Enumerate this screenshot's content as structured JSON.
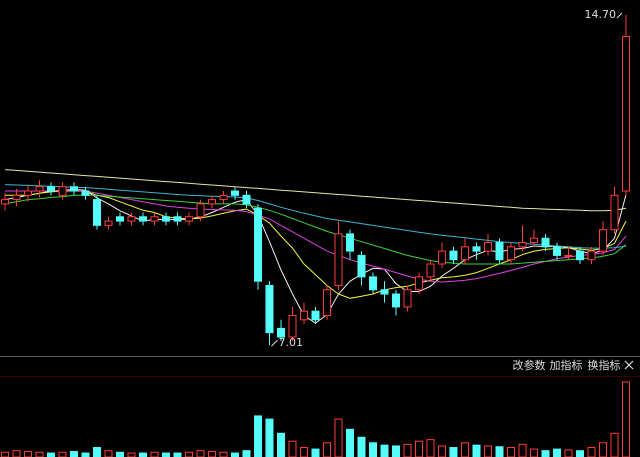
{
  "chart_data": {
    "type": "candlestick",
    "ylim": [
      6.78,
      15.05
    ],
    "colors": {
      "up": "#ff3c3c",
      "down": "#54fcfc"
    },
    "open": [
      10.3,
      10.4,
      10.5,
      10.6,
      10.7,
      10.5,
      10.7,
      10.6,
      10.4,
      9.8,
      10.0,
      9.9,
      10.0,
      9.9,
      10.0,
      10.0,
      9.9,
      10.0,
      10.3,
      10.4,
      10.6,
      10.5,
      10.2,
      8.4,
      7.4,
      7.2,
      7.6,
      7.8,
      7.7,
      8.4,
      9.6,
      9.1,
      8.6,
      8.3,
      8.2,
      7.9,
      8.3,
      8.6,
      8.9,
      9.2,
      9.0,
      9.3,
      9.2,
      9.4,
      9.0,
      9.3,
      9.4,
      9.5,
      9.3,
      9.1,
      9.2,
      9.0,
      9.2,
      9.7,
      10.6
    ],
    "high": [
      10.55,
      10.65,
      10.75,
      10.85,
      10.8,
      10.8,
      10.8,
      10.7,
      10.5,
      10.0,
      10.1,
      10.1,
      10.1,
      10.1,
      10.1,
      10.1,
      10.1,
      10.4,
      10.5,
      10.6,
      10.7,
      10.6,
      10.3,
      8.5,
      7.6,
      7.9,
      8.0,
      7.9,
      8.4,
      9.9,
      9.7,
      9.2,
      8.7,
      8.5,
      8.3,
      8.4,
      8.7,
      9.0,
      9.4,
      9.3,
      9.5,
      9.4,
      9.6,
      9.5,
      9.4,
      9.8,
      9.7,
      9.6,
      9.4,
      9.3,
      9.3,
      9.3,
      9.9,
      10.7,
      14.7
    ],
    "low": [
      10.15,
      10.25,
      10.35,
      10.45,
      10.5,
      10.4,
      10.5,
      10.4,
      9.7,
      9.7,
      9.8,
      9.8,
      9.8,
      9.8,
      9.8,
      9.8,
      9.8,
      9.9,
      10.2,
      10.3,
      10.4,
      10.2,
      8.3,
      7.01,
      7.1,
      7.1,
      7.5,
      7.5,
      7.6,
      8.3,
      9.0,
      8.4,
      8.2,
      8.0,
      7.7,
      7.8,
      8.2,
      8.5,
      8.8,
      8.9,
      8.9,
      9.0,
      9.1,
      8.9,
      8.9,
      9.2,
      9.3,
      9.2,
      9.0,
      9.0,
      8.9,
      8.9,
      9.1,
      9.6,
      10.5
    ],
    "close": [
      10.4,
      10.5,
      10.6,
      10.7,
      10.6,
      10.7,
      10.6,
      10.5,
      9.8,
      9.9,
      9.9,
      10.0,
      9.9,
      10.0,
      9.9,
      9.9,
      10.0,
      10.3,
      10.4,
      10.5,
      10.5,
      10.3,
      8.5,
      7.3,
      7.2,
      7.7,
      7.8,
      7.6,
      8.3,
      9.6,
      9.2,
      8.6,
      8.3,
      8.2,
      7.9,
      8.3,
      8.6,
      8.9,
      9.2,
      9.0,
      9.3,
      9.2,
      9.4,
      9.0,
      9.3,
      9.4,
      9.5,
      9.3,
      9.1,
      9.1,
      9.0,
      9.2,
      9.7,
      10.5,
      14.2
    ],
    "lines": [
      {
        "color": "#f0f0f0",
        "values": [
          10.4,
          10.45,
          10.5,
          10.55,
          10.6,
          10.62,
          10.64,
          10.62,
          10.44,
          10.3,
          10.14,
          10.02,
          9.9,
          9.94,
          9.94,
          9.94,
          9.94,
          10.0,
          10.1,
          10.22,
          10.34,
          10.4,
          10.04,
          9.42,
          8.76,
          8.2,
          7.7,
          7.52,
          7.72,
          8.2,
          8.5,
          8.66,
          8.8,
          8.78,
          8.44,
          8.26,
          8.26,
          8.38,
          8.62,
          8.8,
          9.0,
          9.12,
          9.22,
          9.18,
          9.24,
          9.26,
          9.32,
          9.3,
          9.32,
          9.28,
          9.2,
          9.14,
          9.22,
          9.5,
          10.52
        ]
      },
      {
        "color": "#f5f53c",
        "values": [
          10.5,
          10.5,
          10.5,
          10.55,
          10.58,
          10.6,
          10.6,
          10.6,
          10.5,
          10.45,
          10.35,
          10.25,
          10.15,
          10.1,
          10.0,
          9.97,
          9.95,
          9.97,
          10.02,
          10.08,
          10.14,
          10.18,
          10.04,
          9.85,
          9.55,
          9.27,
          8.9,
          8.65,
          8.4,
          8.2,
          8.1,
          8.15,
          8.2,
          8.3,
          8.35,
          8.38,
          8.46,
          8.52,
          8.58,
          8.6,
          8.64,
          8.7,
          8.8,
          8.9,
          9.0,
          9.12,
          9.2,
          9.24,
          9.26,
          9.28,
          9.25,
          9.22,
          9.26,
          9.38,
          9.9
        ]
      },
      {
        "color": "#e040e0",
        "values": [
          10.6,
          10.6,
          10.6,
          10.6,
          10.6,
          10.62,
          10.62,
          10.6,
          10.55,
          10.5,
          10.45,
          10.4,
          10.35,
          10.3,
          10.25,
          10.22,
          10.2,
          10.18,
          10.17,
          10.16,
          10.15,
          10.12,
          10.04,
          9.95,
          9.8,
          9.65,
          9.5,
          9.35,
          9.2,
          9.1,
          9.0,
          8.92,
          8.85,
          8.78,
          8.7,
          8.62,
          8.55,
          8.5,
          8.48,
          8.5,
          8.52,
          8.56,
          8.62,
          8.68,
          8.75,
          8.82,
          8.9,
          8.96,
          9.02,
          9.06,
          9.1,
          9.12,
          9.16,
          9.24,
          9.55
        ]
      },
      {
        "color": "#3cd23c",
        "values": [
          10.3,
          10.35,
          10.4,
          10.42,
          10.45,
          10.47,
          10.5,
          10.5,
          10.5,
          10.48,
          10.46,
          10.44,
          10.42,
          10.4,
          10.38,
          10.36,
          10.34,
          10.32,
          10.3,
          10.3,
          10.3,
          10.28,
          10.22,
          10.15,
          10.06,
          9.96,
          9.86,
          9.76,
          9.66,
          9.58,
          9.5,
          9.42,
          9.34,
          9.26,
          9.18,
          9.1,
          9.04,
          8.98,
          8.94,
          8.92,
          8.9,
          8.9,
          8.9,
          8.9,
          8.9,
          8.92,
          8.94,
          8.96,
          8.98,
          9.0,
          9.02,
          9.04,
          9.08,
          9.14,
          9.35
        ]
      },
      {
        "color": "#3cb4d2",
        "values": [
          10.75,
          10.74,
          10.73,
          10.72,
          10.71,
          10.7,
          10.69,
          10.68,
          10.66,
          10.64,
          10.62,
          10.6,
          10.58,
          10.56,
          10.54,
          10.52,
          10.5,
          10.49,
          10.48,
          10.47,
          10.46,
          10.44,
          10.38,
          10.3,
          10.22,
          10.15,
          10.08,
          10.02,
          9.96,
          9.92,
          9.88,
          9.84,
          9.8,
          9.76,
          9.72,
          9.68,
          9.64,
          9.6,
          9.57,
          9.54,
          9.51,
          9.48,
          9.45,
          9.42,
          9.4,
          9.38,
          9.36,
          9.34,
          9.32,
          9.3,
          9.28,
          9.27,
          9.27,
          9.28,
          9.32
        ]
      },
      {
        "color": "#e6e6a0",
        "values": [
          11.1,
          11.08,
          11.06,
          11.04,
          11.02,
          11.0,
          10.98,
          10.96,
          10.94,
          10.92,
          10.9,
          10.88,
          10.86,
          10.84,
          10.82,
          10.8,
          10.78,
          10.76,
          10.74,
          10.72,
          10.7,
          10.68,
          10.66,
          10.64,
          10.62,
          10.6,
          10.58,
          10.56,
          10.54,
          10.52,
          10.5,
          10.48,
          10.46,
          10.44,
          10.42,
          10.4,
          10.38,
          10.36,
          10.34,
          10.32,
          10.3,
          10.28,
          10.26,
          10.24,
          10.22,
          10.2,
          10.19,
          10.18,
          10.17,
          10.16,
          10.15,
          10.14,
          10.14,
          10.15,
          10.2
        ]
      }
    ],
    "annotations": [
      {
        "value": 14.7,
        "label": "14.70"
      },
      {
        "value": 7.01,
        "label": "7.01"
      }
    ],
    "volume": {
      "ylim": [
        0,
        100
      ],
      "values": [
        6,
        8,
        7,
        6,
        5,
        6,
        7,
        5,
        12,
        8,
        6,
        5,
        5,
        6,
        5,
        5,
        6,
        8,
        7,
        6,
        5,
        8,
        52,
        48,
        30,
        20,
        12,
        10,
        18,
        48,
        35,
        25,
        18,
        15,
        14,
        16,
        20,
        22,
        14,
        12,
        18,
        15,
        14,
        13,
        12,
        16,
        10,
        8,
        10,
        9,
        8,
        12,
        18,
        30,
        95
      ]
    },
    "toolbar": [
      "改参数",
      "加指标",
      "换指标"
    ]
  }
}
